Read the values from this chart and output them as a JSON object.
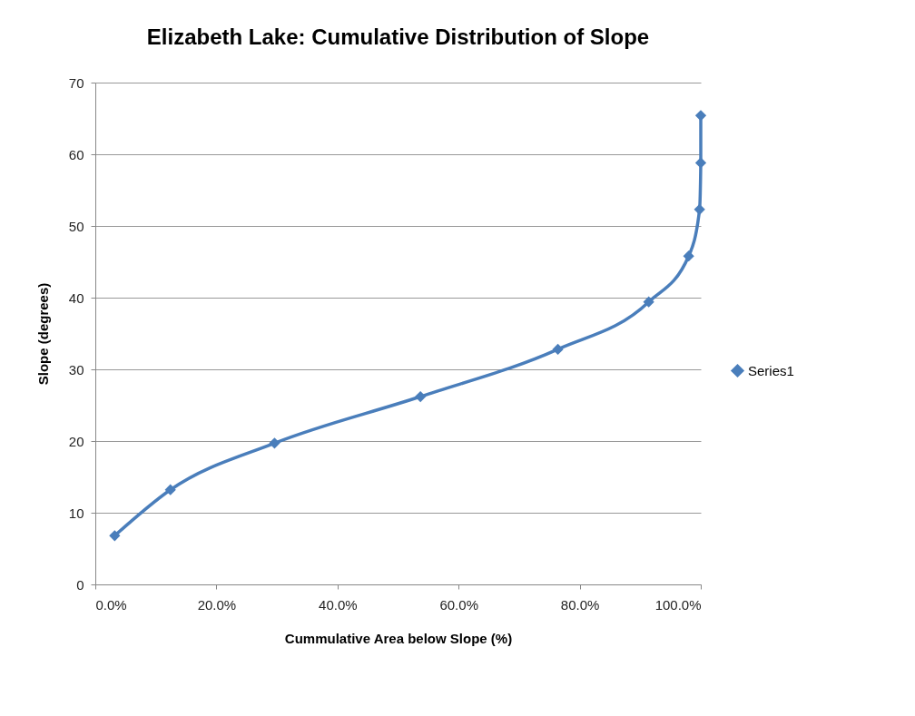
{
  "chart_data": {
    "type": "line",
    "title": "Elizabeth Lake: Cumulative Distribution of Slope",
    "xlabel": "Cummulative Area below Slope (%)",
    "ylabel": "Slope (degrees)",
    "x": [
      3.2,
      12.4,
      29.6,
      53.7,
      76.4,
      91.4,
      98.0,
      99.8,
      100,
      100
    ],
    "series": [
      {
        "name": "Series1",
        "color": "#4a7ebb",
        "values": [
          6.8,
          13.2,
          19.7,
          26.2,
          32.8,
          39.4,
          45.8,
          52.3,
          58.8,
          65.4
        ]
      }
    ],
    "xlim": [
      0,
      100
    ],
    "xticks": [
      {
        "value": 0,
        "label": "0.0%"
      },
      {
        "value": 20,
        "label": "20.0%"
      },
      {
        "value": 40,
        "label": "40.0%"
      },
      {
        "value": 60,
        "label": "60.0%"
      },
      {
        "value": 80,
        "label": "80.0%"
      },
      {
        "value": 100,
        "label": "100.0%"
      }
    ],
    "ylim": [
      0,
      70
    ],
    "yticks": [
      0,
      10,
      20,
      30,
      40,
      50,
      60,
      70
    ],
    "grid": "y",
    "legend": "right",
    "marker": "diamond",
    "line_style": "solid"
  }
}
